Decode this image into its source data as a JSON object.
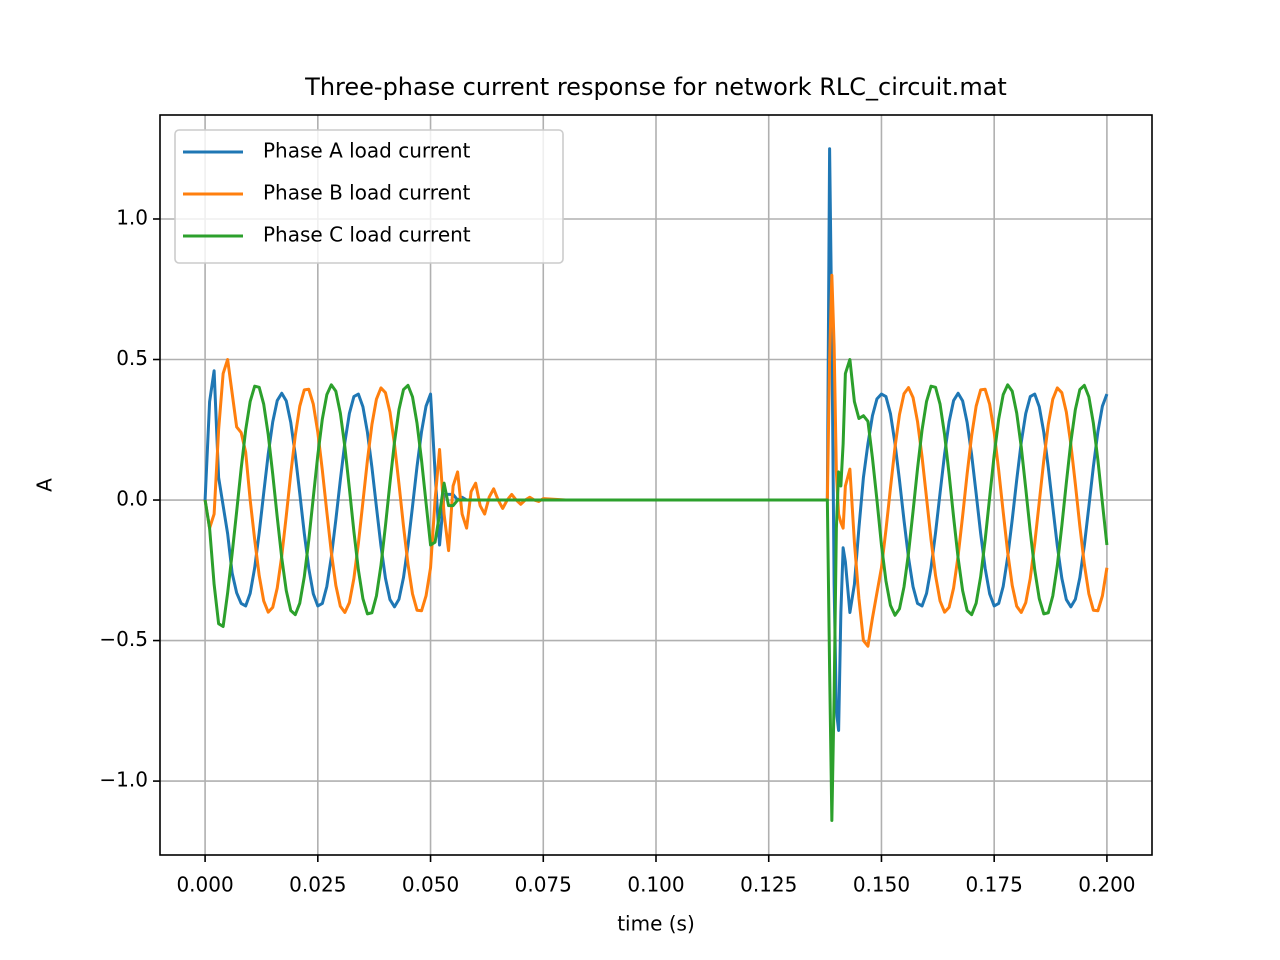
{
  "chart_data": {
    "type": "line",
    "title": "Three-phase current response for network RLC_circuit.mat",
    "xlabel": "time (s)",
    "ylabel": "A",
    "x": [
      0,
      0.001,
      0.002,
      0.003,
      0.004,
      0.005,
      0.006,
      0.007,
      0.008,
      0.009,
      0.01,
      0.011,
      0.012,
      0.013,
      0.014,
      0.015,
      0.016,
      0.017,
      0.018,
      0.019,
      0.02,
      0.021,
      0.022,
      0.023,
      0.024,
      0.025,
      0.026,
      0.027,
      0.028,
      0.029,
      0.03,
      0.031,
      0.032,
      0.033,
      0.034,
      0.035,
      0.036,
      0.037,
      0.038,
      0.039,
      0.04,
      0.041,
      0.042,
      0.043,
      0.044,
      0.045,
      0.046,
      0.047,
      0.048,
      0.049,
      0.05,
      0.051,
      0.052,
      0.053,
      0.054,
      0.055,
      0.056,
      0.057,
      0.058,
      0.059,
      0.06,
      0.061,
      0.062,
      0.063,
      0.064,
      0.065,
      0.066,
      0.067,
      0.068,
      0.069,
      0.07,
      0.071,
      0.072,
      0.073,
      0.074,
      0.075,
      0.08,
      0.09,
      0.1,
      0.11,
      0.12,
      0.13,
      0.137,
      0.138,
      0.1385,
      0.139,
      0.1395,
      0.14,
      0.1405,
      0.141,
      0.1415,
      0.142,
      0.143,
      0.144,
      0.145,
      0.146,
      0.147,
      0.148,
      0.149,
      0.15,
      0.151,
      0.152,
      0.153,
      0.154,
      0.155,
      0.156,
      0.157,
      0.158,
      0.159,
      0.16,
      0.161,
      0.162,
      0.163,
      0.164,
      0.165,
      0.166,
      0.167,
      0.168,
      0.169,
      0.17,
      0.171,
      0.172,
      0.173,
      0.174,
      0.175,
      0.176,
      0.177,
      0.178,
      0.179,
      0.18,
      0.181,
      0.182,
      0.183,
      0.184,
      0.185,
      0.186,
      0.187,
      0.188,
      0.189,
      0.19,
      0.191,
      0.192,
      0.193,
      0.194,
      0.195,
      0.196,
      0.197,
      0.198,
      0.199,
      0.2
    ],
    "series": [
      {
        "name": "Phase A load current",
        "color": "#1f77b4",
        "values": [
          0,
          0.35,
          0.46,
          0.08,
          -0.02,
          -0.12,
          -0.26,
          -0.33,
          -0.368,
          -0.377,
          -0.332,
          -0.241,
          -0.116,
          0.025,
          0.163,
          0.278,
          0.354,
          0.38,
          0.353,
          0.276,
          0.161,
          0.023,
          -0.119,
          -0.243,
          -0.334,
          -0.377,
          -0.368,
          -0.307,
          -0.202,
          -0.07,
          0.072,
          0.205,
          0.308,
          0.368,
          0.377,
          0.332,
          0.241,
          0.116,
          -0.025,
          -0.163,
          -0.278,
          -0.354,
          -0.38,
          -0.353,
          -0.276,
          -0.161,
          -0.023,
          0.119,
          0.243,
          0.334,
          0.377,
          0.1,
          -0.16,
          0.02,
          0.02,
          0.02,
          0,
          0.01,
          0,
          0,
          0,
          0,
          0,
          0,
          0,
          0,
          0,
          0,
          0,
          0,
          0,
          0,
          0,
          0,
          0,
          0,
          0,
          0,
          0,
          0,
          0,
          0,
          0,
          0,
          1.25,
          0.6,
          -0.3,
          -0.75,
          -0.82,
          -0.4,
          -0.17,
          -0.22,
          -0.4,
          -0.3,
          -0.1,
          0.08,
          0.2,
          0.3,
          0.36,
          0.377,
          0.368,
          0.307,
          0.202,
          0.07,
          -0.072,
          -0.205,
          -0.308,
          -0.368,
          -0.377,
          -0.332,
          -0.241,
          -0.116,
          0.025,
          0.163,
          0.278,
          0.354,
          0.38,
          0.353,
          0.276,
          0.161,
          0.023,
          -0.119,
          -0.243,
          -0.334,
          -0.377,
          -0.368,
          -0.307,
          -0.202,
          -0.07,
          0.072,
          0.205,
          0.308,
          0.368,
          0.377,
          0.332,
          0.241,
          0.116,
          -0.025,
          -0.163,
          -0.278,
          -0.354,
          -0.38,
          -0.353,
          -0.276,
          -0.161,
          -0.023,
          0.119,
          0.243,
          0.334,
          0.377
        ]
      },
      {
        "name": "Phase B load current",
        "color": "#ff7f0e",
        "values": [
          0,
          -0.1,
          -0.05,
          0.25,
          0.45,
          0.5,
          0.38,
          0.26,
          0.24,
          0.17,
          0,
          -0.141,
          -0.269,
          -0.359,
          -0.399,
          -0.382,
          -0.313,
          -0.199,
          -0.057,
          0.093,
          0.229,
          0.334,
          0.392,
          0.394,
          0.341,
          0.241,
          0.106,
          -0.043,
          -0.187,
          -0.304,
          -0.378,
          -0.4,
          -0.365,
          -0.279,
          -0.154,
          -0.007,
          0.141,
          0.269,
          0.359,
          0.399,
          0.382,
          0.313,
          0.199,
          0.057,
          -0.093,
          -0.229,
          -0.334,
          -0.392,
          -0.394,
          -0.341,
          -0.241,
          0,
          0.18,
          -0.05,
          -0.18,
          0.05,
          0.1,
          -0.05,
          -0.1,
          0.03,
          0.06,
          -0.02,
          -0.05,
          0.01,
          0.04,
          0,
          -0.03,
          0,
          0.02,
          0,
          -0.015,
          0,
          0.01,
          0,
          -0.005,
          0.005,
          0,
          0,
          0,
          0,
          0,
          0,
          0,
          0,
          0.5,
          0.8,
          0.55,
          0.1,
          -0.05,
          -0.08,
          -0.1,
          0.05,
          0.11,
          -0.15,
          -0.35,
          -0.5,
          -0.52,
          -0.42,
          -0.33,
          -0.241,
          -0.106,
          0.043,
          0.187,
          0.304,
          0.378,
          0.4,
          0.365,
          0.279,
          0.154,
          0.007,
          -0.141,
          -0.269,
          -0.359,
          -0.399,
          -0.382,
          -0.313,
          -0.199,
          -0.057,
          0.093,
          0.229,
          0.334,
          0.392,
          0.394,
          0.341,
          0.241,
          0.106,
          -0.043,
          -0.187,
          -0.304,
          -0.378,
          -0.4,
          -0.365,
          -0.279,
          -0.154,
          -0.007,
          0.141,
          0.269,
          0.359,
          0.399,
          0.382,
          0.313,
          0.199,
          0.057,
          -0.093,
          -0.229,
          -0.334,
          -0.392,
          -0.394,
          -0.341,
          -0.241
        ]
      },
      {
        "name": "Phase C load current",
        "color": "#2ca02c",
        "values": [
          0,
          -0.1,
          -0.3,
          -0.44,
          -0.45,
          -0.33,
          -0.19,
          -0.041,
          0.112,
          0.249,
          0.351,
          0.405,
          0.401,
          0.341,
          0.233,
          0.092,
          -0.061,
          -0.206,
          -0.322,
          -0.393,
          -0.408,
          -0.367,
          -0.273,
          -0.142,
          0.01,
          0.16,
          0.288,
          0.375,
          0.41,
          0.387,
          0.309,
          0.189,
          0.041,
          -0.112,
          -0.249,
          -0.351,
          -0.405,
          -0.401,
          -0.341,
          -0.233,
          -0.092,
          0.061,
          0.206,
          0.322,
          0.393,
          0.408,
          0.367,
          0.273,
          0.142,
          -0.01,
          -0.16,
          -0.15,
          -0.05,
          0.06,
          -0.02,
          -0.02,
          0,
          0,
          0,
          0,
          0,
          0,
          0,
          0,
          0,
          0,
          0,
          0,
          0,
          0,
          0,
          0,
          0,
          0,
          0,
          0,
          0,
          0,
          0,
          0,
          0,
          0,
          0,
          0,
          -0.6,
          -1.14,
          -0.7,
          -0.1,
          0.1,
          0.05,
          0.2,
          0.45,
          0.5,
          0.35,
          0.29,
          0.3,
          0.28,
          0.15,
          0,
          -0.16,
          -0.288,
          -0.375,
          -0.41,
          -0.387,
          -0.309,
          -0.189,
          -0.041,
          0.112,
          0.249,
          0.351,
          0.405,
          0.401,
          0.341,
          0.233,
          0.092,
          -0.061,
          -0.206,
          -0.322,
          -0.393,
          -0.408,
          -0.367,
          -0.273,
          -0.142,
          0.01,
          0.16,
          0.288,
          0.375,
          0.41,
          0.387,
          0.309,
          0.189,
          0.041,
          -0.112,
          -0.249,
          -0.351,
          -0.405,
          -0.401,
          -0.341,
          -0.233,
          -0.092,
          0.061,
          0.206,
          0.322,
          0.393,
          0.408,
          0.367,
          0.273,
          0.142,
          -0.01,
          -0.16
        ]
      }
    ],
    "xlim": [
      -0.01,
      0.21
    ],
    "xticks": [
      {
        "value": 0,
        "label": "0.000"
      },
      {
        "value": 0.025,
        "label": "0.025"
      },
      {
        "value": 0.05,
        "label": "0.050"
      },
      {
        "value": 0.075,
        "label": "0.075"
      },
      {
        "value": 0.1,
        "label": "0.100"
      },
      {
        "value": 0.125,
        "label": "0.125"
      },
      {
        "value": 0.15,
        "label": "0.150"
      },
      {
        "value": 0.175,
        "label": "0.175"
      },
      {
        "value": 0.2,
        "label": "0.200"
      }
    ],
    "ylim": [
      -1.263,
      1.37
    ],
    "yticks": [
      {
        "value": -1,
        "label": "−1.0"
      },
      {
        "value": -0.5,
        "label": "−0.5"
      },
      {
        "value": 0,
        "label": "0.0"
      },
      {
        "value": 0.5,
        "label": "0.5"
      },
      {
        "value": 1,
        "label": "1.0"
      }
    ],
    "grid": true,
    "legend": "upper left"
  }
}
